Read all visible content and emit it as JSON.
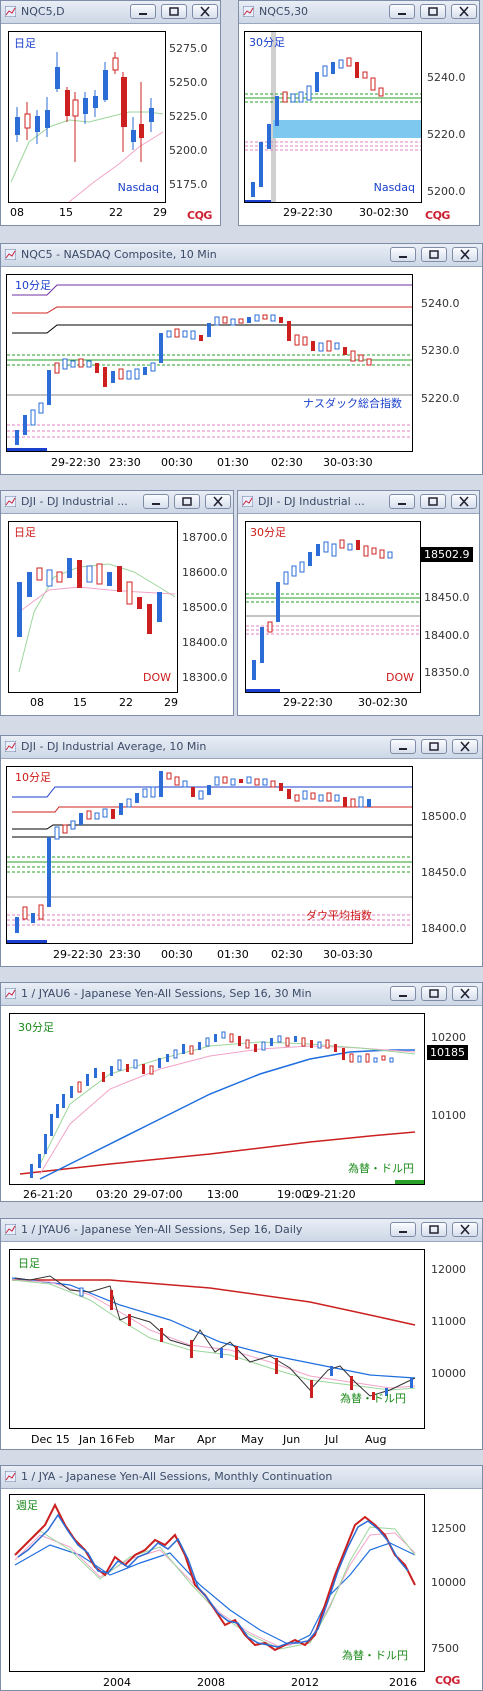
{
  "colors": {
    "up": "#2b6cd6",
    "down": "#cc2020",
    "bg": "#ffffff"
  },
  "windows": [
    {
      "id": "w1",
      "title": "NQC5,D",
      "note": "日足",
      "note_color": "#1a3fcc",
      "label": "Nasdaq",
      "label_color": "#1a3fcc",
      "y_ticks": [
        "5275.0",
        "5250.0",
        "5225.0",
        "5200.0",
        "5175.0"
      ],
      "x_ticks": [
        "08",
        "15",
        "22",
        "29"
      ],
      "cqg": "CQG"
    },
    {
      "id": "w2",
      "title": "NQC5,30",
      "note": "30分足",
      "note_color": "#1a3fcc",
      "label": "Nasdaq",
      "label_color": "#1a3fcc",
      "y_ticks": [
        "5240.0",
        "5220.0",
        "5200.0"
      ],
      "x_ticks": [
        "29-22:30",
        "30-02:30"
      ],
      "cqg": "CQG"
    },
    {
      "id": "w3",
      "title": "NQC5 - NASDAQ Composite, 10 Min",
      "note": "10分足",
      "note_color": "#1a3fcc",
      "label": "ナスダック総合指数",
      "label_color": "#1a3fcc",
      "y_ticks": [
        "5240.0",
        "5230.0",
        "5220.0"
      ],
      "x_ticks": [
        "29-22:30",
        "23:30",
        "00:30",
        "01:30",
        "02:30",
        "30-03:30"
      ]
    },
    {
      "id": "w4",
      "title": "DJI - DJ Industrial ...",
      "note": "日足",
      "note_color": "#cc1a1a",
      "label": "DOW",
      "label_color": "#cc1a1a",
      "y_ticks": [
        "18700.0",
        "18600.0",
        "18500.0",
        "18400.0",
        "18300.0"
      ],
      "x_ticks": [
        "08",
        "15",
        "22",
        "29"
      ]
    },
    {
      "id": "w5",
      "title": "DJI - DJ Industrial ...",
      "note": "30分足",
      "note_color": "#cc1a1a",
      "label": "DOW",
      "label_color": "#cc1a1a",
      "y_ticks": [
        "18450.0",
        "18400.0",
        "18350.0"
      ],
      "x_ticks": [
        "29-22:30",
        "30-02:30"
      ],
      "price": "18502.9"
    },
    {
      "id": "w6",
      "title": "DJI - DJ Industrial Average, 10 Min",
      "note": "10分足",
      "note_color": "#cc1a1a",
      "label": "ダウ平均指数",
      "label_color": "#cc1a1a",
      "y_ticks": [
        "18500.0",
        "18450.0",
        "18400.0"
      ],
      "x_ticks": [
        "29-22:30",
        "23:30",
        "00:30",
        "01:30",
        "02:30",
        "30-03:30"
      ]
    },
    {
      "id": "w7",
      "title": "1 / JYAU6 - Japanese Yen-All Sessions, Sep 16, 30 Min",
      "note": "30分足",
      "note_color": "#1a8a1a",
      "label": "為替・ドル円",
      "label_color": "#1a8a1a",
      "y_ticks": [
        "10200",
        "10100"
      ],
      "x_ticks": [
        "26-21:20",
        "03:20",
        "29-07:00",
        "13:00",
        "19:00",
        "29-21:20"
      ],
      "price": "10185"
    },
    {
      "id": "w8",
      "title": "1 / JYAU6 - Japanese Yen-All Sessions, Sep 16, Daily",
      "note": "日足",
      "note_color": "#1a8a1a",
      "label": "為替・ドル円",
      "label_color": "#1a8a1a",
      "y_ticks": [
        "12000",
        "11000",
        "10000"
      ],
      "x_ticks": [
        "Dec 15",
        "Jan 16",
        "Feb",
        "Mar",
        "Apr",
        "May",
        "Jun",
        "Jul",
        "Aug"
      ]
    },
    {
      "id": "w9",
      "title": "1 / JYA - Japanese Yen-All Sessions, Monthly Continuation",
      "note": "週足",
      "note_color": "#1a8a1a",
      "label": "為替・ドル円",
      "label_color": "#1a8a1a",
      "y_ticks": [
        "12500",
        "10000",
        "7500"
      ],
      "x_ticks": [
        "2004",
        "2008",
        "2012",
        "2016"
      ],
      "cqg": "CQG"
    }
  ]
}
